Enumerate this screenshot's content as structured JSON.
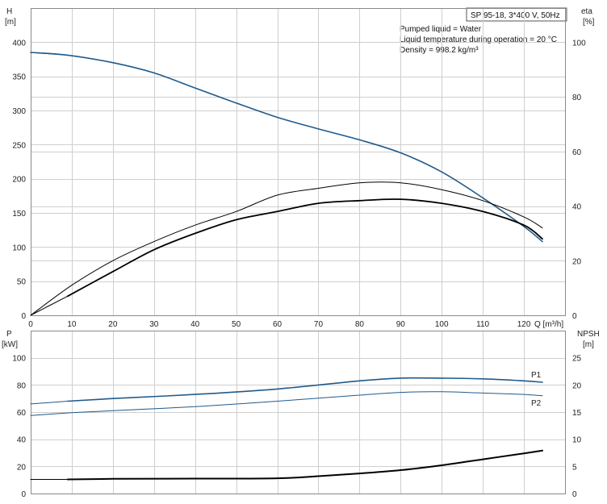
{
  "colors": {
    "blue": "#1f5a8c",
    "black": "#000000",
    "grid": "#cfcfcf"
  },
  "title_box": "SP 95-18, 3*400 V, 50Hz",
  "info_lines": [
    "Pumped liquid = Water",
    "Liquid temperature during operation = 20 °C",
    "Density = 998.2 kg/m³"
  ],
  "chart_data": [
    {
      "type": "line",
      "panel": "top",
      "xlabel": "Q [m³/h]",
      "ylabel_left": [
        "H",
        "[m]"
      ],
      "ylabel_right": [
        "eta",
        "[%]"
      ],
      "xlim": [
        0,
        130
      ],
      "x_ticks": [
        0,
        10,
        20,
        30,
        40,
        50,
        60,
        70,
        80,
        90,
        100,
        110,
        120
      ],
      "ylim_left": [
        0,
        450
      ],
      "y_ticks_left": [
        0,
        50,
        100,
        150,
        200,
        250,
        300,
        350,
        400
      ],
      "ylim_right": [
        0,
        112.5
      ],
      "y_ticks_right": [
        0,
        20,
        40,
        60,
        80,
        100
      ],
      "grid": true,
      "series": [
        {
          "axis": "left",
          "color": "#1f5a8c",
          "width": 1.6,
          "x": [
            0,
            9,
            20,
            30,
            40,
            50,
            60,
            70,
            80,
            90,
            100,
            110,
            120,
            124.5
          ],
          "y": [
            385,
            381,
            370,
            355,
            333,
            311,
            290,
            273,
            257,
            238,
            210,
            172,
            130,
            108
          ]
        },
        {
          "axis": "left",
          "color": "#1f5a8c",
          "width": 1.0,
          "x": [
            0,
            9
          ],
          "y": [
            385,
            381
          ]
        },
        {
          "axis": "right",
          "color": "#000000",
          "width": 1.0,
          "x": [
            0,
            10,
            20,
            30,
            40,
            50,
            60,
            70,
            80,
            90,
            100,
            110,
            120,
            124.5
          ],
          "y": [
            0,
            11,
            20,
            27,
            33,
            38,
            44,
            46.5,
            48.5,
            48.5,
            46,
            42,
            36,
            32
          ]
        },
        {
          "axis": "right",
          "color": "#000000",
          "width": 1.8,
          "x": [
            9,
            20,
            30,
            40,
            50,
            60,
            70,
            80,
            90,
            100,
            110,
            120,
            124.5
          ],
          "y": [
            7,
            16,
            24,
            30,
            35,
            38,
            41,
            42,
            42.5,
            41,
            38,
            33,
            28
          ]
        },
        {
          "axis": "right",
          "color": "#000000",
          "width": 1.0,
          "x": [
            0,
            9
          ],
          "y": [
            0,
            7
          ]
        }
      ]
    },
    {
      "type": "line",
      "panel": "bottom",
      "xlabel": "",
      "ylabel_left": [
        "P",
        "[kW]"
      ],
      "ylabel_right": [
        "NPSH",
        "[m]"
      ],
      "xlim": [
        0,
        130
      ],
      "x_ticks": [
        0,
        10,
        20,
        30,
        40,
        50,
        60,
        70,
        80,
        90,
        100,
        110,
        120
      ],
      "ylim_left": [
        0,
        120
      ],
      "y_ticks_left": [
        0,
        20,
        40,
        60,
        80,
        100
      ],
      "ylim_right": [
        0,
        30
      ],
      "y_ticks_right": [
        0,
        5,
        10,
        15,
        20,
        25
      ],
      "grid": true,
      "series": [
        {
          "name": "P1",
          "axis": "left",
          "color": "#1f5a8c",
          "width": 1.6,
          "x": [
            9,
            20,
            40,
            60,
            80,
            90,
            100,
            110,
            120,
            124.5
          ],
          "y": [
            68,
            70,
            73,
            77,
            83,
            85,
            85,
            84.5,
            83,
            82
          ]
        },
        {
          "axis": "left",
          "color": "#1f5a8c",
          "width": 1.0,
          "x": [
            0,
            9
          ],
          "y": [
            66,
            68
          ]
        },
        {
          "name": "P2",
          "axis": "left",
          "color": "#1f5a8c",
          "width": 1.0,
          "x": [
            0,
            10,
            20,
            40,
            60,
            80,
            90,
            100,
            110,
            120,
            124.5
          ],
          "y": [
            57.5,
            59.5,
            61,
            64,
            68,
            72.5,
            74.5,
            75,
            74,
            73,
            72
          ]
        },
        {
          "axis": "right",
          "color": "#000000",
          "width": 2.0,
          "x": [
            9,
            20,
            40,
            60,
            70,
            80,
            90,
            100,
            110,
            120,
            124.5
          ],
          "y": [
            2.6,
            2.7,
            2.75,
            2.8,
            3.2,
            3.7,
            4.3,
            5.2,
            6.3,
            7.4,
            7.9
          ]
        },
        {
          "axis": "right",
          "color": "#000000",
          "width": 1.0,
          "x": [
            0,
            9
          ],
          "y": [
            2.6,
            2.6
          ]
        }
      ]
    }
  ]
}
